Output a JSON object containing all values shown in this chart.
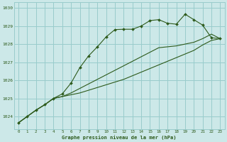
{
  "title": "Graphe pression niveau de la mer (hPa)",
  "background_color": "#cce8e8",
  "plot_bg_color": "#cce8e8",
  "grid_color": "#99cccc",
  "line_color": "#2d5a1b",
  "marker_color": "#2d5a1b",
  "xlim": [
    -0.5,
    23.5
  ],
  "ylim": [
    1023.3,
    1030.3
  ],
  "yticks": [
    1024,
    1025,
    1026,
    1027,
    1028,
    1029,
    1030
  ],
  "xticks": [
    0,
    1,
    2,
    3,
    4,
    5,
    6,
    7,
    8,
    9,
    10,
    11,
    12,
    13,
    14,
    15,
    16,
    17,
    18,
    19,
    20,
    21,
    22,
    23
  ],
  "series1_x": [
    0,
    1,
    2,
    3,
    4,
    5,
    6,
    7,
    8,
    9,
    10,
    11,
    12,
    13,
    14,
    15,
    16,
    17,
    18,
    19,
    20,
    21,
    22,
    23
  ],
  "series1_y": [
    1023.65,
    1024.0,
    1024.35,
    1024.65,
    1025.0,
    1025.25,
    1025.85,
    1026.7,
    1027.35,
    1027.85,
    1028.4,
    1028.8,
    1028.82,
    1028.82,
    1029.0,
    1029.3,
    1029.35,
    1029.15,
    1029.1,
    1029.65,
    1029.35,
    1029.05,
    1028.35,
    1028.3
  ],
  "series2_x": [
    0,
    1,
    2,
    3,
    4,
    5,
    6,
    7,
    8,
    9,
    10,
    11,
    12,
    13,
    14,
    15,
    16,
    17,
    18,
    19,
    20,
    21,
    22,
    23
  ],
  "series2_y": [
    1023.65,
    1024.0,
    1024.35,
    1024.65,
    1025.0,
    1025.1,
    1025.3,
    1025.55,
    1025.8,
    1026.05,
    1026.3,
    1026.55,
    1026.8,
    1027.05,
    1027.3,
    1027.55,
    1027.8,
    1027.85,
    1027.9,
    1028.0,
    1028.1,
    1028.3,
    1028.55,
    1028.3
  ],
  "series3_x": [
    0,
    1,
    2,
    3,
    4,
    5,
    6,
    7,
    8,
    9,
    10,
    11,
    12,
    13,
    14,
    15,
    16,
    17,
    18,
    19,
    20,
    21,
    22,
    23
  ],
  "series3_y": [
    1023.65,
    1024.0,
    1024.35,
    1024.65,
    1025.0,
    1025.1,
    1025.2,
    1025.3,
    1025.45,
    1025.6,
    1025.75,
    1025.9,
    1026.05,
    1026.25,
    1026.45,
    1026.65,
    1026.85,
    1027.05,
    1027.25,
    1027.45,
    1027.65,
    1027.95,
    1028.2,
    1028.3
  ]
}
